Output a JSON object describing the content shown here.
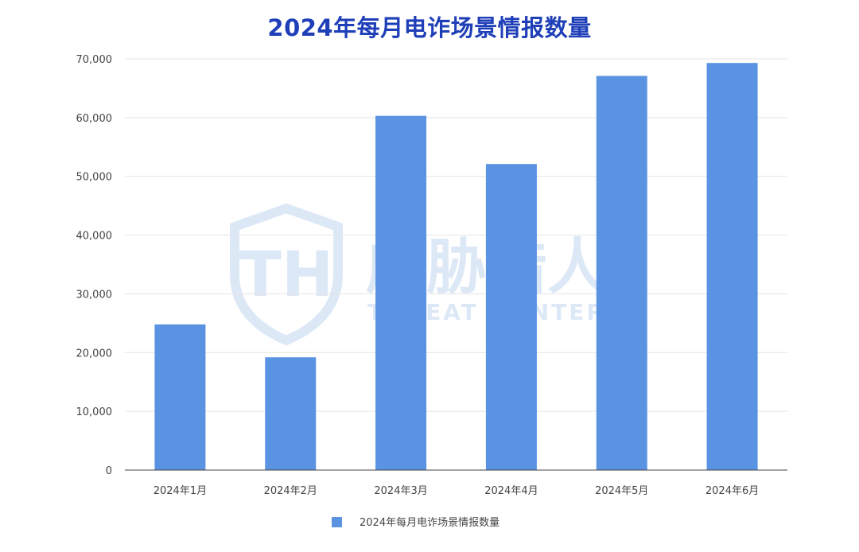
{
  "chart_data": {
    "type": "bar",
    "title": "2024年每月电诈场景情报数量",
    "categories": [
      "2024年1月",
      "2024年2月",
      "2024年3月",
      "2024年4月",
      "2024年5月",
      "2024年6月"
    ],
    "series": [
      {
        "name": "2024年每月电诈场景情报数量",
        "values": [
          24800,
          19200,
          60300,
          52100,
          67100,
          69300
        ],
        "color": "#5b93e3"
      }
    ],
    "ylim": [
      0,
      70000
    ],
    "yticks": [
      0,
      10000,
      20000,
      30000,
      40000,
      50000,
      60000,
      70000
    ],
    "ytick_labels": [
      "0",
      "10,000",
      "20,000",
      "30,000",
      "40,000",
      "50,000",
      "60,000",
      "70,000"
    ],
    "grid": true,
    "legend_position": "bottom-center"
  },
  "watermark": {
    "brand_cn": "威胁猎人",
    "brand_en": "THREAT HUNTER",
    "logo_letters": "TH",
    "color": "#dde8f7"
  }
}
